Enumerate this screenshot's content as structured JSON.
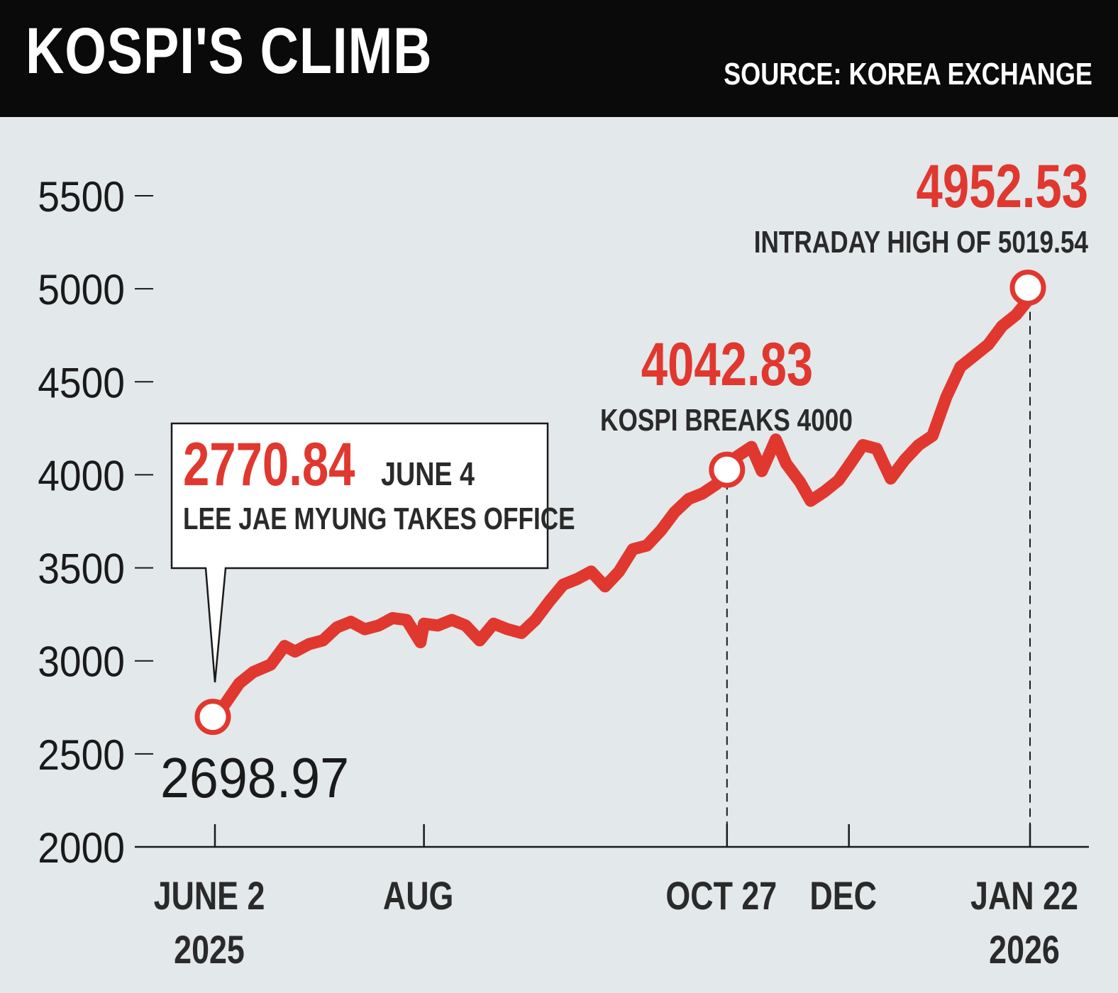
{
  "header": {
    "title": "KOSPI'S CLIMB",
    "source": "SOURCE: KOREA EXCHANGE"
  },
  "colors": {
    "line": "#e0382f",
    "background": "#e3e8ea",
    "header": "#0a0a0a",
    "text": "#1a1a1a"
  },
  "chart_data": {
    "type": "line",
    "title": "KOSPI'S CLIMB",
    "source": "SOURCE: KOREA EXCHANGE",
    "ylim": [
      2000,
      5500
    ],
    "y_ticks": [
      "5500",
      "5000",
      "4500",
      "4000",
      "3500",
      "3000",
      "2500",
      "2000"
    ],
    "x_ticks": [
      {
        "date": "2025-06-02",
        "label": "JUNE 2",
        "sublabel": "2025"
      },
      {
        "date": "2025-08-01",
        "label": "AUG",
        "sublabel": ""
      },
      {
        "date": "2025-10-27",
        "label": "OCT 27",
        "sublabel": ""
      },
      {
        "date": "2025-12-01",
        "label": "DEC",
        "sublabel": ""
      },
      {
        "date": "2026-01-22",
        "label": "JAN 22",
        "sublabel": "2026"
      }
    ],
    "grid": false,
    "series": [
      {
        "x": [
          "2025-06-02",
          "2025-06-05",
          "2025-06-09",
          "2025-06-13",
          "2025-06-18",
          "2025-06-22",
          "2025-06-25",
          "2025-06-29",
          "2025-07-03",
          "2025-07-07",
          "2025-07-11",
          "2025-07-15",
          "2025-07-19",
          "2025-07-23",
          "2025-07-27",
          "2025-07-31",
          "2025-08-01",
          "2025-08-05",
          "2025-08-09",
          "2025-08-13",
          "2025-08-17",
          "2025-08-21",
          "2025-08-25",
          "2025-08-29",
          "2025-09-02",
          "2025-09-06",
          "2025-09-10",
          "2025-09-14",
          "2025-09-18",
          "2025-09-22",
          "2025-09-26",
          "2025-09-30",
          "2025-10-04",
          "2025-10-08",
          "2025-10-12",
          "2025-10-16",
          "2025-10-20",
          "2025-10-24",
          "2025-10-27",
          "2025-10-30",
          "2025-11-03",
          "2025-11-06",
          "2025-11-10",
          "2025-11-13",
          "2025-11-17",
          "2025-11-20",
          "2025-11-24",
          "2025-11-28",
          "2025-12-01",
          "2025-12-05",
          "2025-12-09",
          "2025-12-13",
          "2025-12-17",
          "2025-12-21",
          "2025-12-25",
          "2025-12-29",
          "2026-01-02",
          "2026-01-06",
          "2026-01-10",
          "2026-01-14",
          "2026-01-18",
          "2026-01-22"
        ],
        "y": [
          2698.97,
          2770.84,
          2880,
          2940,
          2980,
          3080,
          3050,
          3090,
          3110,
          3180,
          3210,
          3170,
          3190,
          3230,
          3220,
          3100,
          3200,
          3190,
          3220,
          3190,
          3110,
          3200,
          3170,
          3150,
          3220,
          3320,
          3410,
          3440,
          3480,
          3400,
          3480,
          3600,
          3620,
          3700,
          3800,
          3870,
          3900,
          3950,
          4042.83,
          4100,
          4150,
          4020,
          4190,
          4060,
          3960,
          3860,
          3910,
          3970,
          4050,
          4160,
          4140,
          3980,
          4080,
          4160,
          4210,
          4420,
          4580,
          4640,
          4700,
          4800,
          4860,
          4952.53
        ]
      }
    ],
    "annotations": [
      {
        "date": "2025-06-02",
        "value": 2698.97,
        "label": "2698.97"
      },
      {
        "date": "2025-06-04",
        "value": 2770.84,
        "label": "2770.84",
        "note": "JUNE 4",
        "text": "LEE JAE MYUNG TAKES OFFICE"
      },
      {
        "date": "2025-10-27",
        "value": 4042.83,
        "label": "4042.83",
        "text": "KOSPI BREAKS 4000"
      },
      {
        "date": "2026-01-22",
        "value": 4952.53,
        "label": "4952.53",
        "text": "INTRADAY HIGH OF 5019.54"
      }
    ]
  }
}
